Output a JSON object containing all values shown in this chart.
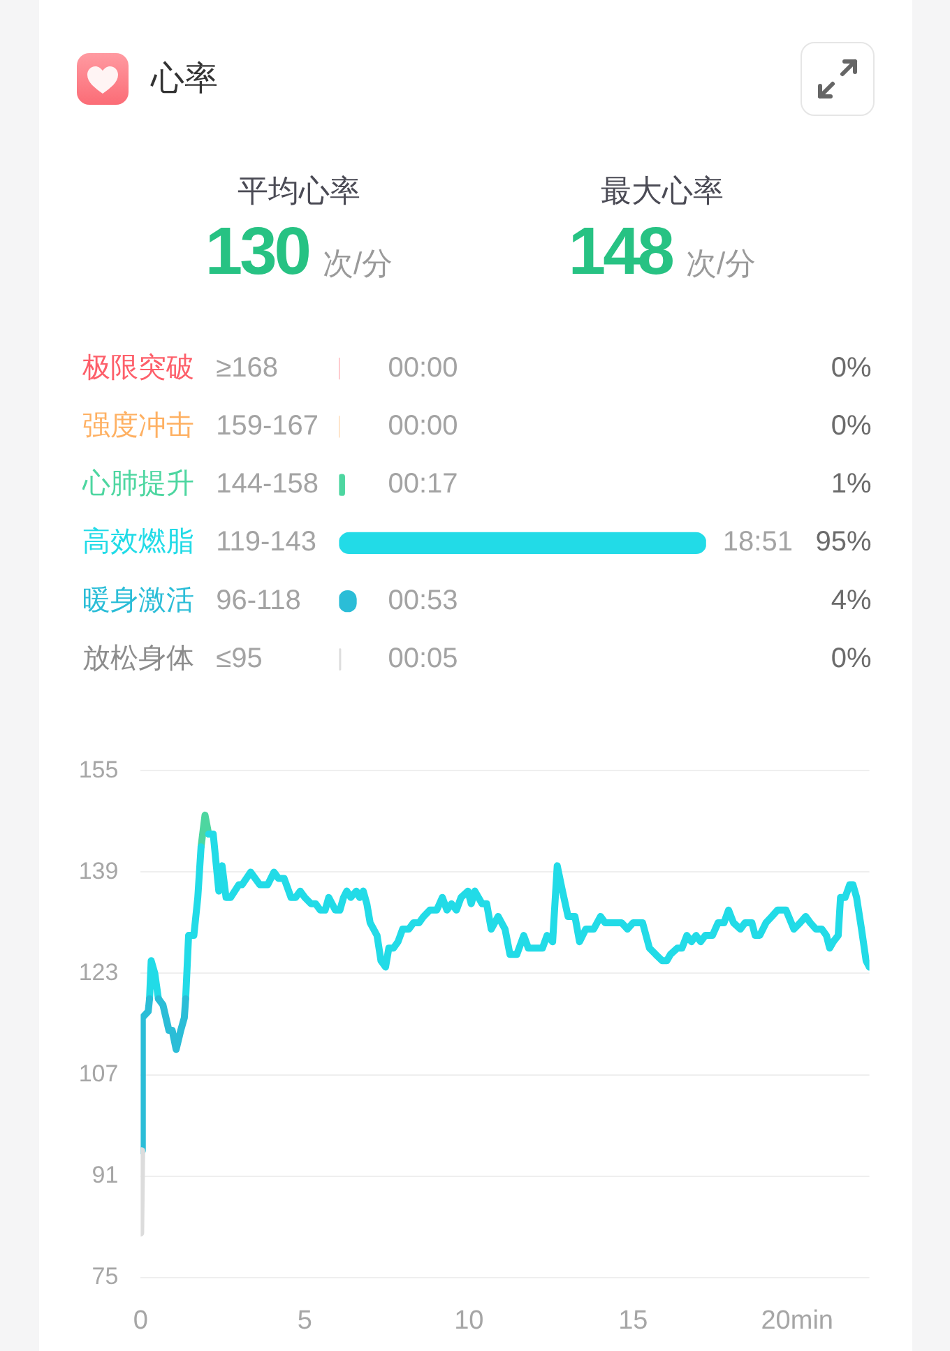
{
  "chart_data": [
    {
      "type": "other",
      "title": "心率",
      "categories": [
        "平均心率",
        "最大心率"
      ],
      "values": [
        130,
        148
      ],
      "data_labels": true,
      "annotations": [
        "次/分",
        "次/分"
      ]
    },
    {
      "type": "bar",
      "orientation": "horizontal",
      "categories": [
        "极限突破",
        "强度冲击",
        "心肺提升",
        "高效燃脂",
        "暖身激活",
        "放松身体"
      ],
      "y2_categories": [
        "≥168",
        "159-167",
        "144-158",
        "119-143",
        "96-118",
        "≤95"
      ],
      "values": [
        0,
        0,
        17,
        1131,
        53,
        5
      ],
      "colors": [
        "#fd5f6a",
        "#feb062",
        "#4dd6a0",
        "#22dbe7",
        "#2bbdd7",
        "#dddddd"
      ],
      "value_labels": [
        "00:00",
        "00:00",
        "00:17",
        "18:51",
        "00:53",
        "00:05"
      ],
      "annotations": [
        "0%",
        "0%",
        "1%",
        "95%",
        "4%",
        "0%"
      ]
    },
    {
      "type": "line",
      "xlim": [
        0,
        22.2
      ],
      "xticks": [
        0,
        5,
        10,
        15,
        {
          "value": 20,
          "label": "20min"
        }
      ],
      "ylim": [
        75,
        155
      ],
      "yticks": [
        75,
        91,
        107,
        123,
        139,
        155
      ],
      "grid": "y",
      "series": [
        {
          "color": "#dcdcdc",
          "x": [
            0,
            0.03
          ],
          "values": [
            82,
            95
          ]
        },
        {
          "color": "#2bbdd7",
          "x": [
            0.03,
            0.05,
            0.23,
            0.27,
            0.4,
            0.54,
            0.68,
            0.86,
            0.96,
            1.08,
            1.22,
            1.33,
            1.37
          ],
          "values": [
            95,
            116,
            117,
            119,
            null,
            119,
            118,
            114,
            114,
            111,
            114,
            116,
            119
          ]
        },
        {
          "color": "#22dbe7",
          "x": [
            0.27,
            0.32,
            0.43,
            0.54,
            0.9,
            1.37,
            1.46,
            1.62,
            1.74,
            1.84,
            1.95,
            2.07,
            2.21,
            2.38,
            2.48,
            2.6,
            2.74,
            2.99,
            3.09,
            3.35,
            3.63,
            3.87,
            4.06,
            4.2,
            4.37,
            4.58,
            4.72,
            4.86,
            5.0,
            5.19,
            5.33,
            5.47,
            5.62,
            5.73,
            5.93,
            6.07,
            6.18,
            6.28,
            6.4,
            6.57,
            6.67,
            6.78,
            6.89,
            6.99,
            7.2,
            7.32,
            7.46,
            7.56,
            7.7,
            7.84,
            7.98,
            8.17,
            8.31,
            8.48,
            8.62,
            8.81,
            9.02,
            9.19,
            9.33,
            9.47,
            9.62,
            9.76,
            9.97,
            10.07,
            10.18,
            10.4,
            10.54,
            10.68,
            10.89,
            11.1,
            11.25,
            11.46,
            11.67,
            11.81,
            12.24,
            12.38,
            12.55,
            12.69,
            12.85,
            13.02,
            13.23,
            13.37,
            13.56,
            13.8,
            14.01,
            14.15,
            14.65,
            14.83,
            15.0,
            15.29,
            15.5,
            15.69,
            15.89,
            16.03,
            16.14,
            16.35,
            16.49,
            16.64,
            16.78,
            16.92,
            17.06,
            17.2,
            17.42,
            17.59,
            17.77,
            17.91,
            18.06,
            18.27,
            18.41,
            18.62,
            18.72,
            18.86,
            19.05,
            19.23,
            19.4,
            19.66,
            19.9,
            20.09,
            20.26,
            20.4,
            20.57,
            20.75,
            20.89,
            20.99,
            21.1,
            21.25,
            21.32,
            21.46,
            21.6,
            21.7,
            21.81,
            21.96,
            22.1,
            22.2
          ],
          "values": [
            119,
            125,
            123,
            119,
            null,
            119,
            129,
            129,
            135,
            143,
            null,
            145,
            145,
            136,
            140,
            135,
            135,
            137,
            137,
            139,
            137,
            137,
            139,
            138,
            138,
            135,
            135,
            136,
            135,
            134,
            134,
            133,
            133,
            135,
            133,
            133,
            135,
            136,
            135,
            136,
            135,
            136,
            134,
            131,
            129,
            125,
            124,
            127,
            127,
            128,
            130,
            130,
            131,
            131,
            132,
            133,
            133,
            135,
            133,
            134,
            133,
            135,
            136,
            134,
            136,
            134,
            134,
            130,
            132,
            130,
            126,
            126,
            129,
            127,
            127,
            129,
            128,
            140,
            136,
            132,
            132,
            128,
            130,
            130,
            132,
            131,
            131,
            130,
            131,
            131,
            127,
            126,
            125,
            125,
            126,
            127,
            127,
            129,
            128,
            129,
            128,
            129,
            129,
            131,
            131,
            133,
            131,
            130,
            131,
            131,
            129,
            129,
            131,
            132,
            133,
            133,
            130,
            131,
            132,
            131,
            130,
            130,
            129,
            127,
            128,
            129,
            135,
            135,
            137,
            137,
            135,
            130,
            125,
            124
          ]
        },
        {
          "color": "#4dd6a0",
          "x": [
            1.84,
            1.96,
            2.07
          ],
          "values": [
            143,
            148,
            145
          ]
        }
      ]
    }
  ]
}
